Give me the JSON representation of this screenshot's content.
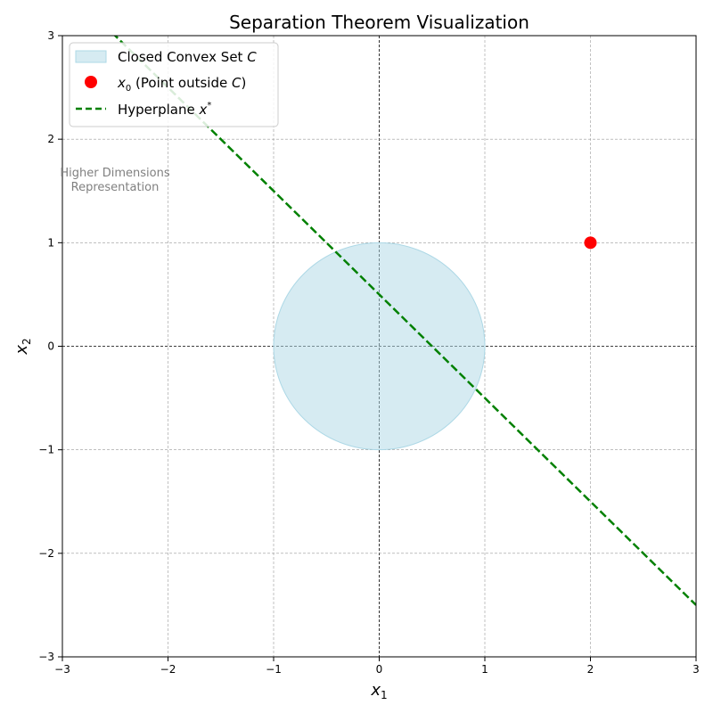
{
  "chart_data": {
    "type": "scatter",
    "title": "Separation Theorem Visualization",
    "xlabel": {
      "base": "x",
      "sub": "1"
    },
    "ylabel": {
      "base": "x",
      "sub": "2"
    },
    "xlim": [
      -3,
      3
    ],
    "ylim": [
      -3,
      3
    ],
    "xticks": [
      -3,
      -2,
      -1,
      0,
      1,
      2,
      3
    ],
    "yticks": [
      -3,
      -2,
      -1,
      0,
      1,
      2,
      3
    ],
    "xtick_labels": [
      "−3",
      "−2",
      "−1",
      "0",
      "1",
      "2",
      "3"
    ],
    "ytick_labels": [
      "−3",
      "−2",
      "−1",
      "0",
      "1",
      "2",
      "3"
    ],
    "grid": true,
    "legend_position": "top-left",
    "convex_set": {
      "shape": "circle",
      "center": [
        0,
        0
      ],
      "radius": 1,
      "color": "#add8e6",
      "legend": {
        "text": "Closed Convex Set ",
        "italic": "C"
      }
    },
    "point": {
      "x": 2,
      "y": 1,
      "color": "#ff0000",
      "legend": {
        "base": "x",
        "sub": "0",
        "text": " (Point outside ",
        "italic": "C",
        "end": ")"
      }
    },
    "hyperplane": {
      "slope": -1,
      "intercept": 0.5,
      "color": "#008000",
      "style": "dashed",
      "legend": {
        "text": "Hyperplane ",
        "base": "x",
        "sup": "*"
      }
    },
    "annotation": {
      "lines": [
        "Higher Dimensions",
        "Representation"
      ],
      "x": -2.5,
      "y": 1.6,
      "color": "#808080"
    }
  }
}
